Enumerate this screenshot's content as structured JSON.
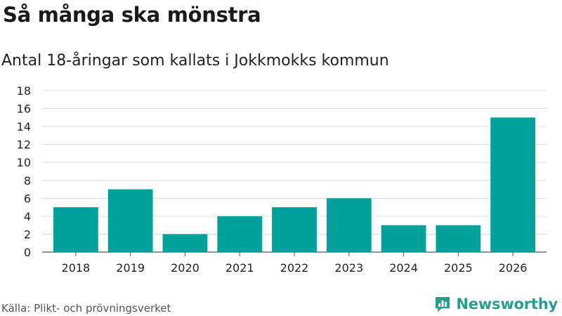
{
  "title": "Så många ska mönstra",
  "subtitle": "Antal 18-åringar som kallats i Jokkmokks kommun",
  "source": "Källa: Plikt- och prövningsverket",
  "brand": {
    "name": "Newsworthy",
    "icon": "newsworthy-logo-icon",
    "color": "#2a9d8f"
  },
  "chart_data": {
    "type": "bar",
    "categories": [
      "2018",
      "2019",
      "2020",
      "2021",
      "2022",
      "2023",
      "2024",
      "2025",
      "2026"
    ],
    "values": [
      5,
      7,
      2,
      4,
      5,
      6,
      3,
      3,
      15
    ],
    "ylim": [
      0,
      18
    ],
    "yticks": [
      0,
      2,
      4,
      6,
      8,
      10,
      12,
      14,
      16,
      18
    ],
    "grid": true,
    "bar_color": "#00a19a"
  }
}
